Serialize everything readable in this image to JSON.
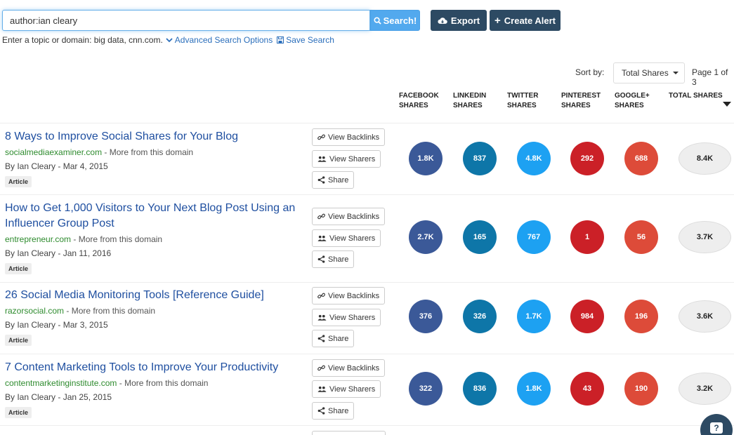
{
  "search": {
    "value": "author:ian cleary",
    "button_label": "Search!"
  },
  "toolbar": {
    "export_label": "Export",
    "alert_label": "Create Alert"
  },
  "hint": {
    "text": "Enter a topic or domain: big data, cnn.com.",
    "advanced_label": "Advanced Search Options",
    "save_label": "Save Search"
  },
  "sort": {
    "label": "Sort by:",
    "selected": "Total Shares",
    "page_info": "Page 1 of 3"
  },
  "columns": [
    {
      "line1": "FACEBOOK",
      "line2": "SHARES"
    },
    {
      "line1": "LINKEDIN",
      "line2": "SHARES"
    },
    {
      "line1": "TWITTER",
      "line2": "SHARES"
    },
    {
      "line1": "PINTEREST",
      "line2": "SHARES"
    },
    {
      "line1": "GOOGLE+",
      "line2": "SHARES"
    },
    {
      "line1": "TOTAL SHARES",
      "line2": ""
    }
  ],
  "actions": {
    "backlinks": "View Backlinks",
    "sharers": "View Sharers",
    "share": "Share"
  },
  "results": [
    {
      "title": "8 Ways to Improve Social Shares for Your Blog",
      "domain": "socialmediaexaminer.com",
      "more": " - More from this domain",
      "byline": "By Ian Cleary - Mar 4, 2015",
      "badge": "Article",
      "facebook": "1.8K",
      "linkedin": "837",
      "twitter": "4.8K",
      "pinterest": "292",
      "googleplus": "688",
      "total": "8.4K"
    },
    {
      "title": "How to Get 1,000 Visitors to Your Next Blog Post Using an Influencer Group Post",
      "domain": "entrepreneur.com",
      "more": " - More from this domain",
      "byline": "By Ian Cleary - Jan 11, 2016",
      "badge": "Article",
      "facebook": "2.7K",
      "linkedin": "165",
      "twitter": "767",
      "pinterest": "1",
      "googleplus": "56",
      "total": "3.7K"
    },
    {
      "title": "26 Social Media Monitoring Tools [Reference Guide]",
      "domain": "razorsocial.com",
      "more": " - More from this domain",
      "byline": "By Ian Cleary - Mar 3, 2015",
      "badge": "Article",
      "facebook": "376",
      "linkedin": "326",
      "twitter": "1.7K",
      "pinterest": "984",
      "googleplus": "196",
      "total": "3.6K"
    },
    {
      "title": "7 Content Marketing Tools to Improve Your Productivity",
      "domain": "contentmarketinginstitute.com",
      "more": " - More from this domain",
      "byline": "By Ian Cleary - Jan 25, 2015",
      "badge": "Article",
      "facebook": "322",
      "linkedin": "836",
      "twitter": "1.8K",
      "pinterest": "43",
      "googleplus": "190",
      "total": "3.2K"
    }
  ],
  "help": {
    "label": "?"
  },
  "colors": {
    "facebook": "#3b5998",
    "linkedin": "#0e76a8",
    "twitter": "#1da1f2",
    "pinterest": "#cb2027",
    "googleplus": "#dd4b39",
    "primary_dark": "#2d4a63",
    "search_blue": "#52a9ee"
  }
}
